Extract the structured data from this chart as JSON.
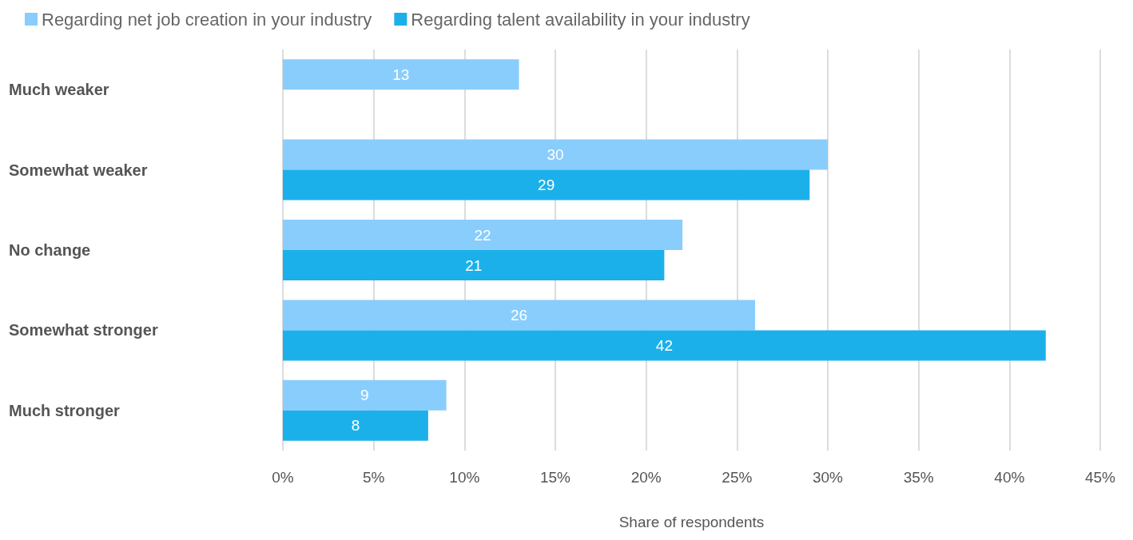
{
  "chart_data": {
    "type": "bar",
    "orientation": "horizontal",
    "xlabel": "Share of respondents",
    "categories": [
      "Much weaker",
      "Somewhat weaker",
      "No change",
      "Somewhat stronger",
      "Much stronger"
    ],
    "series": [
      {
        "name": "Regarding net job creation in your industry",
        "color": "#89cdfd",
        "values": [
          13,
          30,
          22,
          26,
          9
        ]
      },
      {
        "name": "Regarding talent availability in your industry",
        "color": "#1cb0ea",
        "values": [
          null,
          29,
          21,
          42,
          8
        ]
      }
    ],
    "xlim": [
      0,
      45
    ],
    "xticks": [
      {
        "value": 0,
        "label": "0%"
      },
      {
        "value": 5,
        "label": "5%"
      },
      {
        "value": 10,
        "label": "10%"
      },
      {
        "value": 15,
        "label": "15%"
      },
      {
        "value": 20,
        "label": "20%"
      },
      {
        "value": 25,
        "label": "25%"
      },
      {
        "value": 30,
        "label": "30%"
      },
      {
        "value": 35,
        "label": "35%"
      },
      {
        "value": 40,
        "label": "40%"
      },
      {
        "value": 45,
        "label": "45%"
      }
    ],
    "grid": "x",
    "legend": "top left",
    "data_labels": true
  }
}
